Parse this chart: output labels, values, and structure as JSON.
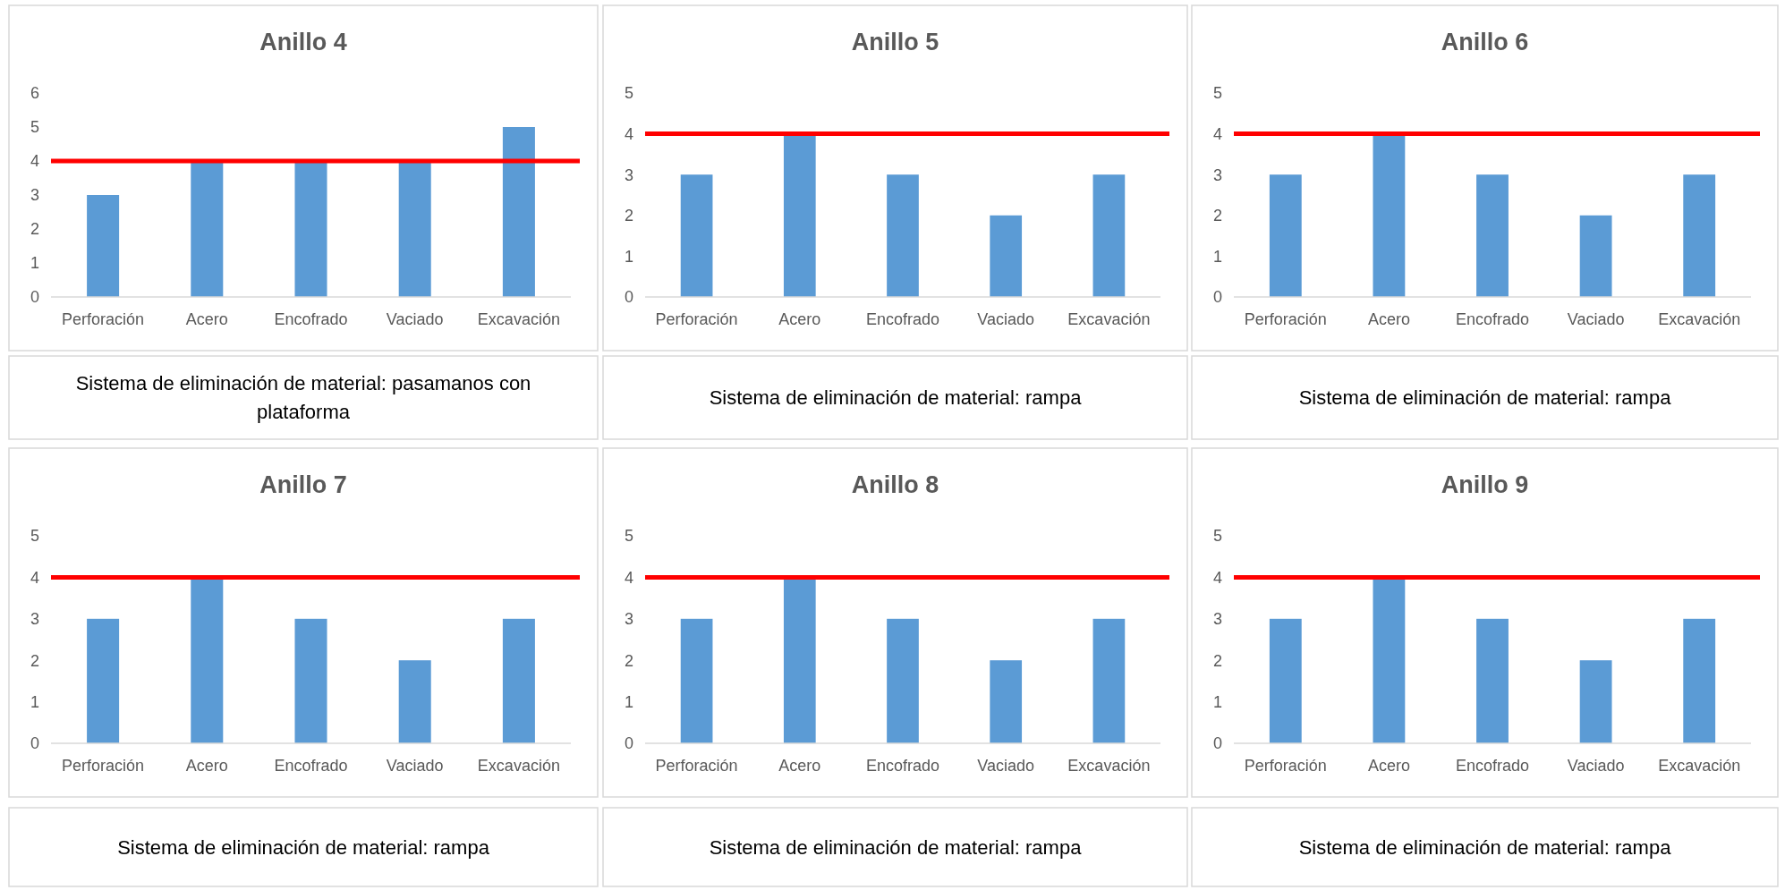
{
  "chart_data": [
    {
      "type": "bar",
      "title": "Anillo 4",
      "categories": [
        "Perforación",
        "Acero",
        "Encofrado",
        "Vaciado",
        "Excavación"
      ],
      "values": [
        3,
        4,
        4,
        4,
        5
      ],
      "color": "#5b9bd5",
      "ylim": [
        0,
        6
      ],
      "yticks": [
        0,
        1,
        2,
        3,
        4,
        5,
        6
      ],
      "ref_lines": [
        {
          "axis": "y",
          "value": 4,
          "color": "#ff0000"
        }
      ],
      "annotations": [
        "Sistema de eliminación de material: pasamanos con plataforma"
      ]
    },
    {
      "type": "bar",
      "title": "Anillo 5",
      "categories": [
        "Perforación",
        "Acero",
        "Encofrado",
        "Vaciado",
        "Excavación"
      ],
      "values": [
        3,
        4,
        3,
        2,
        3
      ],
      "color": "#5b9bd5",
      "ylim": [
        0,
        5
      ],
      "yticks": [
        0,
        1,
        2,
        3,
        4,
        5
      ],
      "ref_lines": [
        {
          "axis": "y",
          "value": 4,
          "color": "#ff0000"
        }
      ],
      "annotations": [
        "Sistema de eliminación de material: rampa"
      ]
    },
    {
      "type": "bar",
      "title": "Anillo 6",
      "categories": [
        "Perforación",
        "Acero",
        "Encofrado",
        "Vaciado",
        "Excavación"
      ],
      "values": [
        3,
        4,
        3,
        2,
        3
      ],
      "color": "#5b9bd5",
      "ylim": [
        0,
        5
      ],
      "yticks": [
        0,
        1,
        2,
        3,
        4,
        5
      ],
      "ref_lines": [
        {
          "axis": "y",
          "value": 4,
          "color": "#ff0000"
        }
      ],
      "annotations": [
        "Sistema de eliminación de material: rampa"
      ]
    },
    {
      "type": "bar",
      "title": "Anillo 7",
      "categories": [
        "Perforación",
        "Acero",
        "Encofrado",
        "Vaciado",
        "Excavación"
      ],
      "values": [
        3,
        4,
        3,
        2,
        3
      ],
      "color": "#5b9bd5",
      "ylim": [
        0,
        5
      ],
      "yticks": [
        0,
        1,
        2,
        3,
        4,
        5
      ],
      "ref_lines": [
        {
          "axis": "y",
          "value": 4,
          "color": "#ff0000"
        }
      ],
      "annotations": [
        "Sistema de eliminación de material: rampa"
      ]
    },
    {
      "type": "bar",
      "title": "Anillo 8",
      "categories": [
        "Perforación",
        "Acero",
        "Encofrado",
        "Vaciado",
        "Excavación"
      ],
      "values": [
        3,
        4,
        3,
        2,
        3
      ],
      "color": "#5b9bd5",
      "ylim": [
        0,
        5
      ],
      "yticks": [
        0,
        1,
        2,
        3,
        4,
        5
      ],
      "ref_lines": [
        {
          "axis": "y",
          "value": 4,
          "color": "#ff0000"
        }
      ],
      "annotations": [
        "Sistema de eliminación de material: rampa"
      ]
    },
    {
      "type": "bar",
      "title": "Anillo 9",
      "categories": [
        "Perforación",
        "Acero",
        "Encofrado",
        "Vaciado",
        "Excavación"
      ],
      "values": [
        3,
        4,
        3,
        2,
        3
      ],
      "color": "#5b9bd5",
      "ylim": [
        0,
        5
      ],
      "yticks": [
        0,
        1,
        2,
        3,
        4,
        5
      ],
      "ref_lines": [
        {
          "axis": "y",
          "value": 4,
          "color": "#ff0000"
        }
      ],
      "annotations": [
        "Sistema de eliminación de material: rampa"
      ]
    }
  ]
}
